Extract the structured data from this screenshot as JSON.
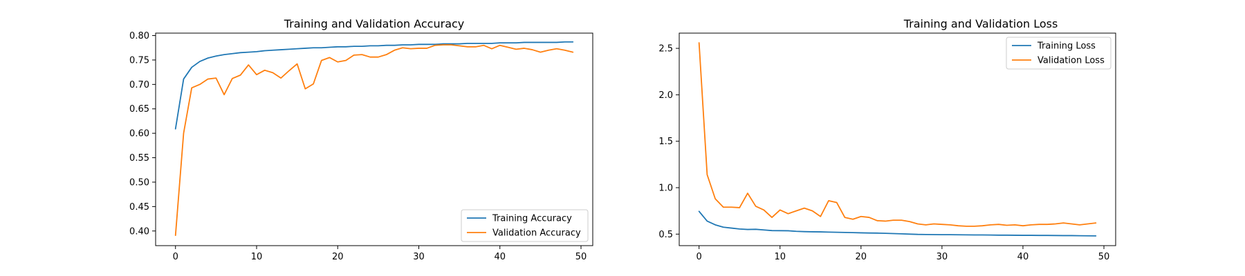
{
  "chart_data": [
    {
      "type": "line",
      "title": "Training and Validation Accuracy",
      "xlabel": "",
      "ylabel": "",
      "xlim": [
        -2.45,
        51.45
      ],
      "ylim": [
        0.37,
        0.805
      ],
      "xticks": [
        0,
        10,
        20,
        30,
        40,
        50
      ],
      "yticks": [
        0.4,
        0.45,
        0.5,
        0.55,
        0.6,
        0.65,
        0.7,
        0.75,
        0.8
      ],
      "yticks_labels": [
        "0.40",
        "0.45",
        "0.50",
        "0.55",
        "0.60",
        "0.65",
        "0.70",
        "0.75",
        "0.80"
      ],
      "grid": false,
      "legend_position": "lower-right",
      "series": [
        {
          "name": "Training Accuracy",
          "color": "#1f77b4",
          "x": [
            0,
            1,
            2,
            3,
            4,
            5,
            6,
            7,
            8,
            9,
            10,
            11,
            12,
            13,
            14,
            15,
            16,
            17,
            18,
            19,
            20,
            21,
            22,
            23,
            24,
            25,
            26,
            27,
            28,
            29,
            30,
            31,
            32,
            33,
            34,
            35,
            36,
            37,
            38,
            39,
            40,
            41,
            42,
            43,
            44,
            45,
            46,
            47,
            48,
            49
          ],
          "values": [
            0.609,
            0.711,
            0.735,
            0.747,
            0.754,
            0.758,
            0.761,
            0.763,
            0.765,
            0.766,
            0.767,
            0.769,
            0.77,
            0.771,
            0.772,
            0.773,
            0.774,
            0.775,
            0.775,
            0.776,
            0.777,
            0.777,
            0.778,
            0.778,
            0.779,
            0.779,
            0.78,
            0.78,
            0.781,
            0.781,
            0.782,
            0.782,
            0.782,
            0.783,
            0.783,
            0.783,
            0.784,
            0.784,
            0.784,
            0.784,
            0.785,
            0.785,
            0.785,
            0.786,
            0.786,
            0.786,
            0.786,
            0.786,
            0.787,
            0.787
          ]
        },
        {
          "name": "Validation Accuracy",
          "color": "#ff7f0e",
          "x": [
            0,
            1,
            2,
            3,
            4,
            5,
            6,
            7,
            8,
            9,
            10,
            11,
            12,
            13,
            14,
            15,
            16,
            17,
            18,
            19,
            20,
            21,
            22,
            23,
            24,
            25,
            26,
            27,
            28,
            29,
            30,
            31,
            32,
            33,
            34,
            35,
            36,
            37,
            38,
            39,
            40,
            41,
            42,
            43,
            44,
            45,
            46,
            47,
            48,
            49
          ],
          "values": [
            0.391,
            0.6,
            0.693,
            0.7,
            0.711,
            0.713,
            0.679,
            0.712,
            0.719,
            0.74,
            0.72,
            0.729,
            0.724,
            0.713,
            0.728,
            0.742,
            0.691,
            0.701,
            0.749,
            0.755,
            0.746,
            0.749,
            0.76,
            0.761,
            0.756,
            0.756,
            0.761,
            0.77,
            0.775,
            0.773,
            0.774,
            0.774,
            0.78,
            0.781,
            0.781,
            0.779,
            0.777,
            0.777,
            0.78,
            0.773,
            0.78,
            0.776,
            0.772,
            0.774,
            0.771,
            0.766,
            0.77,
            0.773,
            0.77,
            0.766
          ]
        }
      ]
    },
    {
      "type": "line",
      "title": "Training and Validation Loss",
      "xlabel": "",
      "ylabel": "",
      "xlim": [
        -2.45,
        51.45
      ],
      "ylim": [
        0.376,
        2.664
      ],
      "xticks": [
        0,
        10,
        20,
        30,
        40,
        50
      ],
      "yticks": [
        0.5,
        1.0,
        1.5,
        2.0,
        2.5
      ],
      "yticks_labels": [
        "0.5",
        "1.0",
        "1.5",
        "2.0",
        "2.5"
      ],
      "grid": false,
      "legend_position": "upper-right",
      "series": [
        {
          "name": "Training Loss",
          "color": "#1f77b4",
          "x": [
            0,
            1,
            2,
            3,
            4,
            5,
            6,
            7,
            8,
            9,
            10,
            11,
            12,
            13,
            14,
            15,
            16,
            17,
            18,
            19,
            20,
            21,
            22,
            23,
            24,
            25,
            26,
            27,
            28,
            29,
            30,
            31,
            32,
            33,
            34,
            35,
            36,
            37,
            38,
            39,
            40,
            41,
            42,
            43,
            44,
            45,
            46,
            47,
            48,
            49
          ],
          "values": [
            0.745,
            0.64,
            0.6,
            0.575,
            0.565,
            0.555,
            0.55,
            0.552,
            0.545,
            0.538,
            0.537,
            0.536,
            0.53,
            0.527,
            0.525,
            0.524,
            0.522,
            0.52,
            0.518,
            0.516,
            0.514,
            0.512,
            0.511,
            0.509,
            0.506,
            0.503,
            0.5,
            0.497,
            0.496,
            0.495,
            0.494,
            0.494,
            0.493,
            0.492,
            0.491,
            0.491,
            0.49,
            0.489,
            0.489,
            0.488,
            0.487,
            0.487,
            0.486,
            0.486,
            0.485,
            0.484,
            0.484,
            0.483,
            0.482,
            0.481
          ]
        },
        {
          "name": "Validation Loss",
          "color": "#ff7f0e",
          "x": [
            0,
            1,
            2,
            3,
            4,
            5,
            6,
            7,
            8,
            9,
            10,
            11,
            12,
            13,
            14,
            15,
            16,
            17,
            18,
            19,
            20,
            21,
            22,
            23,
            24,
            25,
            26,
            27,
            28,
            29,
            30,
            31,
            32,
            33,
            34,
            35,
            36,
            37,
            38,
            39,
            40,
            41,
            42,
            43,
            44,
            45,
            46,
            47,
            48,
            49
          ],
          "values": [
            2.56,
            1.14,
            0.88,
            0.79,
            0.79,
            0.785,
            0.94,
            0.8,
            0.76,
            0.68,
            0.76,
            0.72,
            0.75,
            0.78,
            0.75,
            0.69,
            0.86,
            0.84,
            0.68,
            0.66,
            0.69,
            0.68,
            0.645,
            0.64,
            0.65,
            0.65,
            0.635,
            0.61,
            0.6,
            0.61,
            0.605,
            0.6,
            0.59,
            0.585,
            0.585,
            0.59,
            0.6,
            0.605,
            0.595,
            0.6,
            0.59,
            0.6,
            0.605,
            0.605,
            0.61,
            0.62,
            0.61,
            0.6,
            0.61,
            0.62
          ]
        }
      ]
    }
  ]
}
